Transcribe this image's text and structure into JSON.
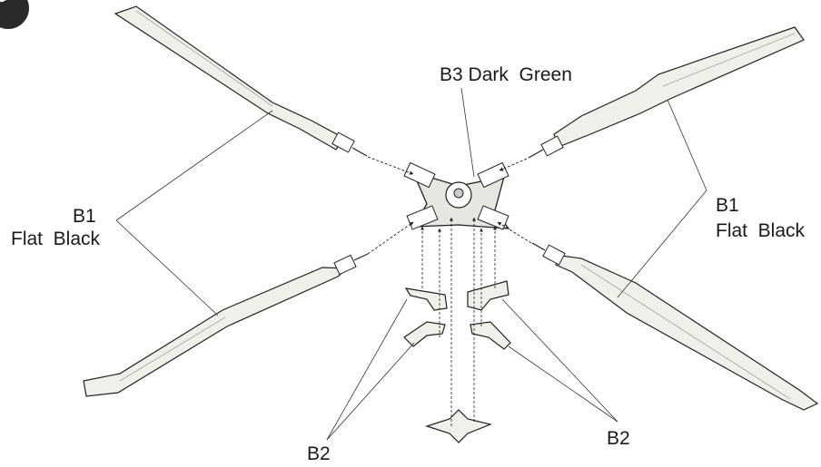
{
  "badge": {
    "icon": "circled-number-icon",
    "color": "#2a2a2a"
  },
  "labels": {
    "hub": {
      "code": "B3",
      "name": "Dark  Green"
    },
    "blade_left": {
      "code": "B1",
      "name": "Flat  Black"
    },
    "blade_right": {
      "code": "B1",
      "name": "Flat  Black"
    },
    "grip_left": {
      "code": "B2"
    },
    "grip_right": {
      "code": "B2"
    }
  },
  "colors": {
    "line": "#222222",
    "blade_fill": "#f1efe9",
    "text": "#1a1a1a"
  }
}
